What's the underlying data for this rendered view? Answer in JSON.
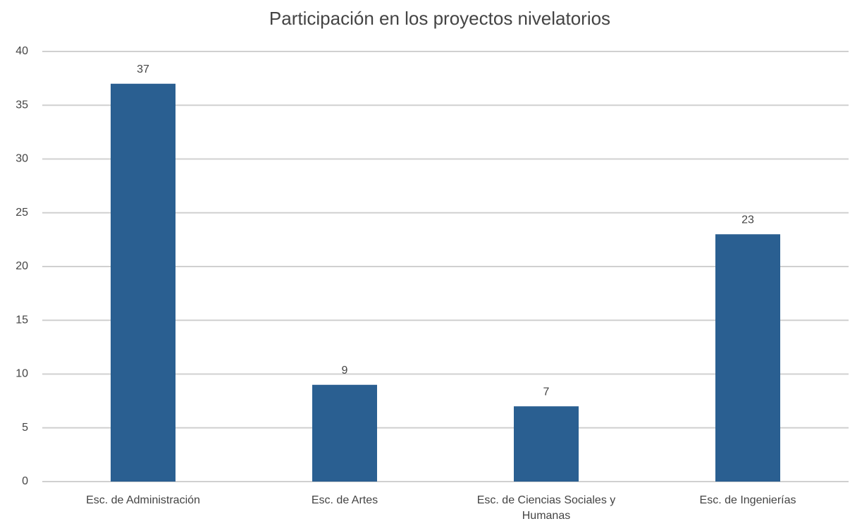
{
  "chart_data": {
    "type": "bar",
    "title": "Participación en los proyectos nivelatorios",
    "categories": [
      "Esc. de Administración",
      "Esc. de Artes",
      "Esc. de Ciencias Sociales y Humanas",
      "Esc. de Ingenierías"
    ],
    "values": [
      37,
      9,
      7,
      23
    ],
    "color": "#2a5f91",
    "ylim": [
      0,
      40
    ],
    "yticks": [
      0,
      5,
      10,
      15,
      20,
      25,
      30,
      35,
      40
    ],
    "grid": true
  }
}
